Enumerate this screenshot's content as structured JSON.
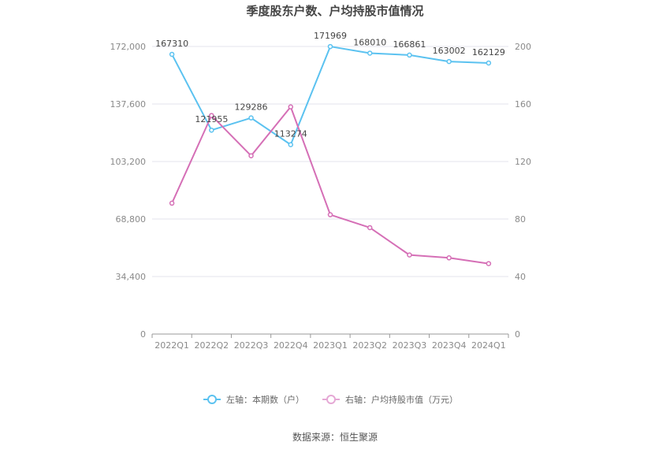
{
  "chart_data": {
    "type": "line",
    "title": "季度股东户数、户均持股市值情况",
    "categories": [
      "2022Q1",
      "2022Q2",
      "2022Q3",
      "2022Q4",
      "2023Q1",
      "2023Q2",
      "2023Q3",
      "2023Q4",
      "2024Q1"
    ],
    "left_axis": {
      "ylim": [
        0,
        172000
      ],
      "ticks": [
        "0",
        "34,400",
        "68,800",
        "103,200",
        "137,600",
        "172,000"
      ]
    },
    "right_axis": {
      "ylim": [
        0,
        200
      ],
      "ticks": [
        "0",
        "40",
        "80",
        "120",
        "160",
        "200"
      ]
    },
    "series": [
      {
        "name": "左轴：本期数（户）",
        "axis": "left",
        "color": "#5bc2f0",
        "values": [
          167310,
          121955,
          129286,
          113274,
          171969,
          168010,
          166861,
          163002,
          162129
        ],
        "labels": [
          "167310",
          "121955",
          "129286",
          "113274",
          "171969",
          "168010",
          "166861",
          "163002",
          "162129"
        ]
      },
      {
        "name": "右轴：户均持股市值（万元）",
        "axis": "right",
        "color": "#d56fb6",
        "values": [
          91,
          152,
          124,
          158,
          83,
          74,
          55,
          53,
          49
        ]
      }
    ],
    "grid": true,
    "legend": "bottom-center"
  },
  "footer": {
    "source": "数据来源：恒生聚源"
  }
}
